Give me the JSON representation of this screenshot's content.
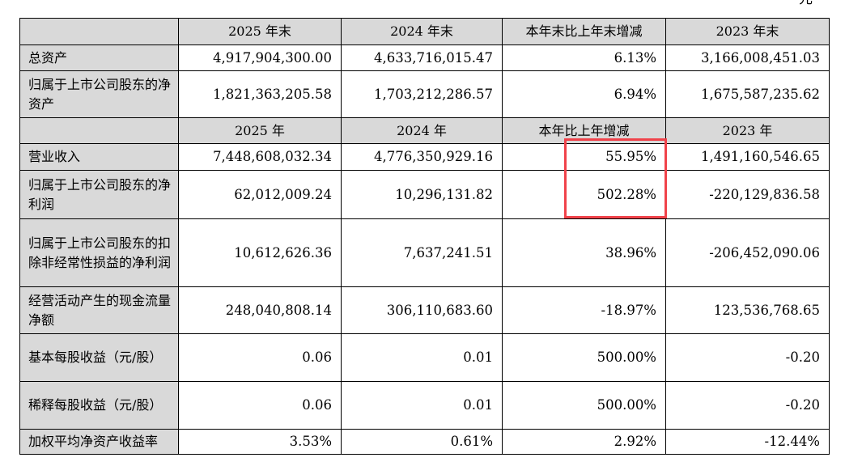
{
  "corner_text": "元",
  "header1": [
    "",
    "2025 年末",
    "2024 年末",
    "本年末比上年末增减",
    "2023 年末"
  ],
  "header2": [
    "",
    "2025 年",
    "2024 年",
    "本年比上年增减",
    "2023 年"
  ],
  "rows_a": [
    {
      "label": "总资产",
      "v2025": "4,917,904,300.00",
      "v2024": "4,633,716,015.47",
      "change": "6.13%",
      "v2023": "3,166,008,451.03"
    },
    {
      "label": "归属于上市公司股东的净资产",
      "v2025": "1,821,363,205.58",
      "v2024": "1,703,212,286.57",
      "change": "6.94%",
      "v2023": "1,675,587,235.62"
    }
  ],
  "rows_b": [
    {
      "label": "营业收入",
      "v2025": "7,448,608,032.34",
      "v2024": "4,776,350,929.16",
      "change": "55.95%",
      "v2023": "1,491,160,546.65"
    },
    {
      "label": "归属于上市公司股东的净利润",
      "v2025": "62,012,009.24",
      "v2024": "10,296,131.82",
      "change": "502.28%",
      "v2023": "-220,129,836.58"
    },
    {
      "label": "归属于上市公司股东的扣除非经常性损益的净利润",
      "v2025": "10,612,626.36",
      "v2024": "7,637,241.51",
      "change": "38.96%",
      "v2023": "-206,452,090.06"
    },
    {
      "label": "经营活动产生的现金流量净额",
      "v2025": "248,040,808.14",
      "v2024": "306,110,683.60",
      "change": "-18.97%",
      "v2023": "123,536,768.65"
    },
    {
      "label": "基本每股收益（元/股）",
      "v2025": "0.06",
      "v2024": "0.01",
      "change": "500.00%",
      "v2023": "-0.20"
    },
    {
      "label": "稀释每股收益（元/股）",
      "v2025": "0.06",
      "v2024": "0.01",
      "change": "500.00%",
      "v2023": "-0.20"
    },
    {
      "label": "加权平均净资产收益率",
      "v2025": "3.53%",
      "v2024": "0.61%",
      "change": "2.92%",
      "v2023": "-12.44%"
    }
  ],
  "highlight_color": "#f0424a"
}
